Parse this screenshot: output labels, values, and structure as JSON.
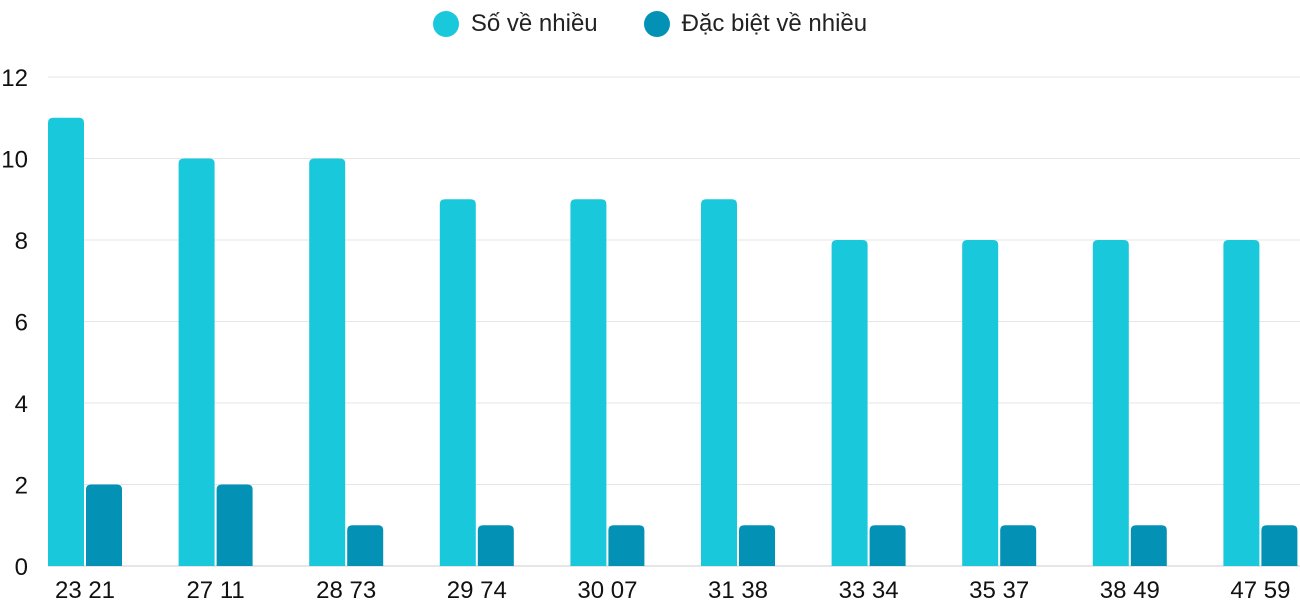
{
  "chart_data": {
    "type": "bar",
    "title": "",
    "xlabel": "",
    "ylabel": "",
    "categories": [
      "23 21",
      "27 11",
      "28 73",
      "29 74",
      "30 07",
      "31 38",
      "33 34",
      "35 37",
      "38 49",
      "47 59"
    ],
    "series": [
      {
        "name": "Số về nhiều",
        "color": "#1AC8DB",
        "values": [
          11,
          10,
          10,
          9,
          9,
          9,
          8,
          8,
          8,
          8
        ]
      },
      {
        "name": "Đặc biệt về nhiều",
        "color": "#0392B5",
        "values": [
          2,
          2,
          1,
          1,
          1,
          1,
          1,
          1,
          1,
          1
        ]
      }
    ],
    "ylim": [
      0,
      12
    ],
    "yticks": [
      0,
      2,
      4,
      6,
      8,
      10,
      12
    ],
    "grid": true,
    "legend_position": "top"
  }
}
